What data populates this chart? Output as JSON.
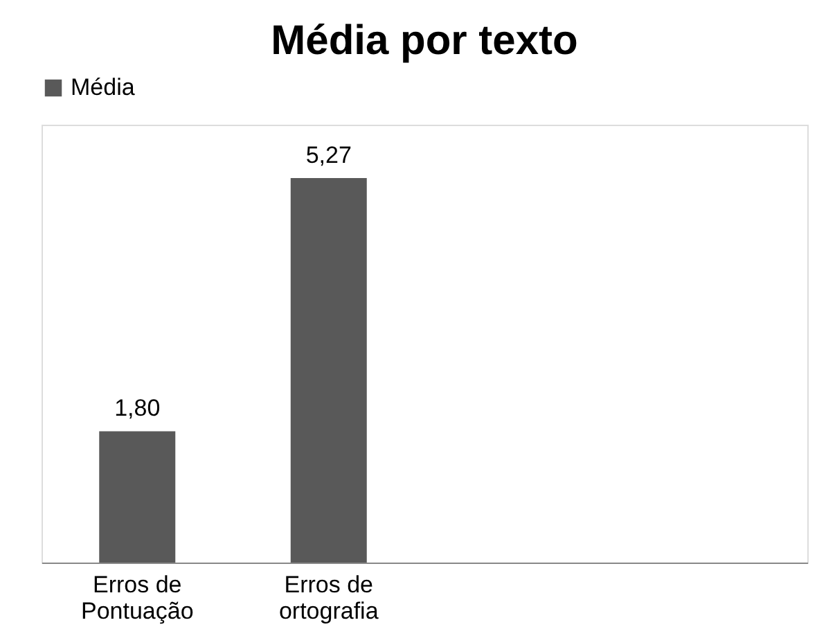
{
  "chart_data": {
    "type": "bar",
    "title": "Média por texto",
    "categories": [
      "Erros de Pontuação",
      "Erros de ortografia",
      null,
      null
    ],
    "series": [
      {
        "name": "Média",
        "color": "#595959",
        "values": [
          1.8,
          5.27,
          null,
          null
        ],
        "value_labels": [
          "1,80",
          "5,27",
          null,
          null
        ]
      }
    ],
    "ylim": [
      0,
      6
    ],
    "tick_labels": "x",
    "legend": "top",
    "grid": false
  }
}
